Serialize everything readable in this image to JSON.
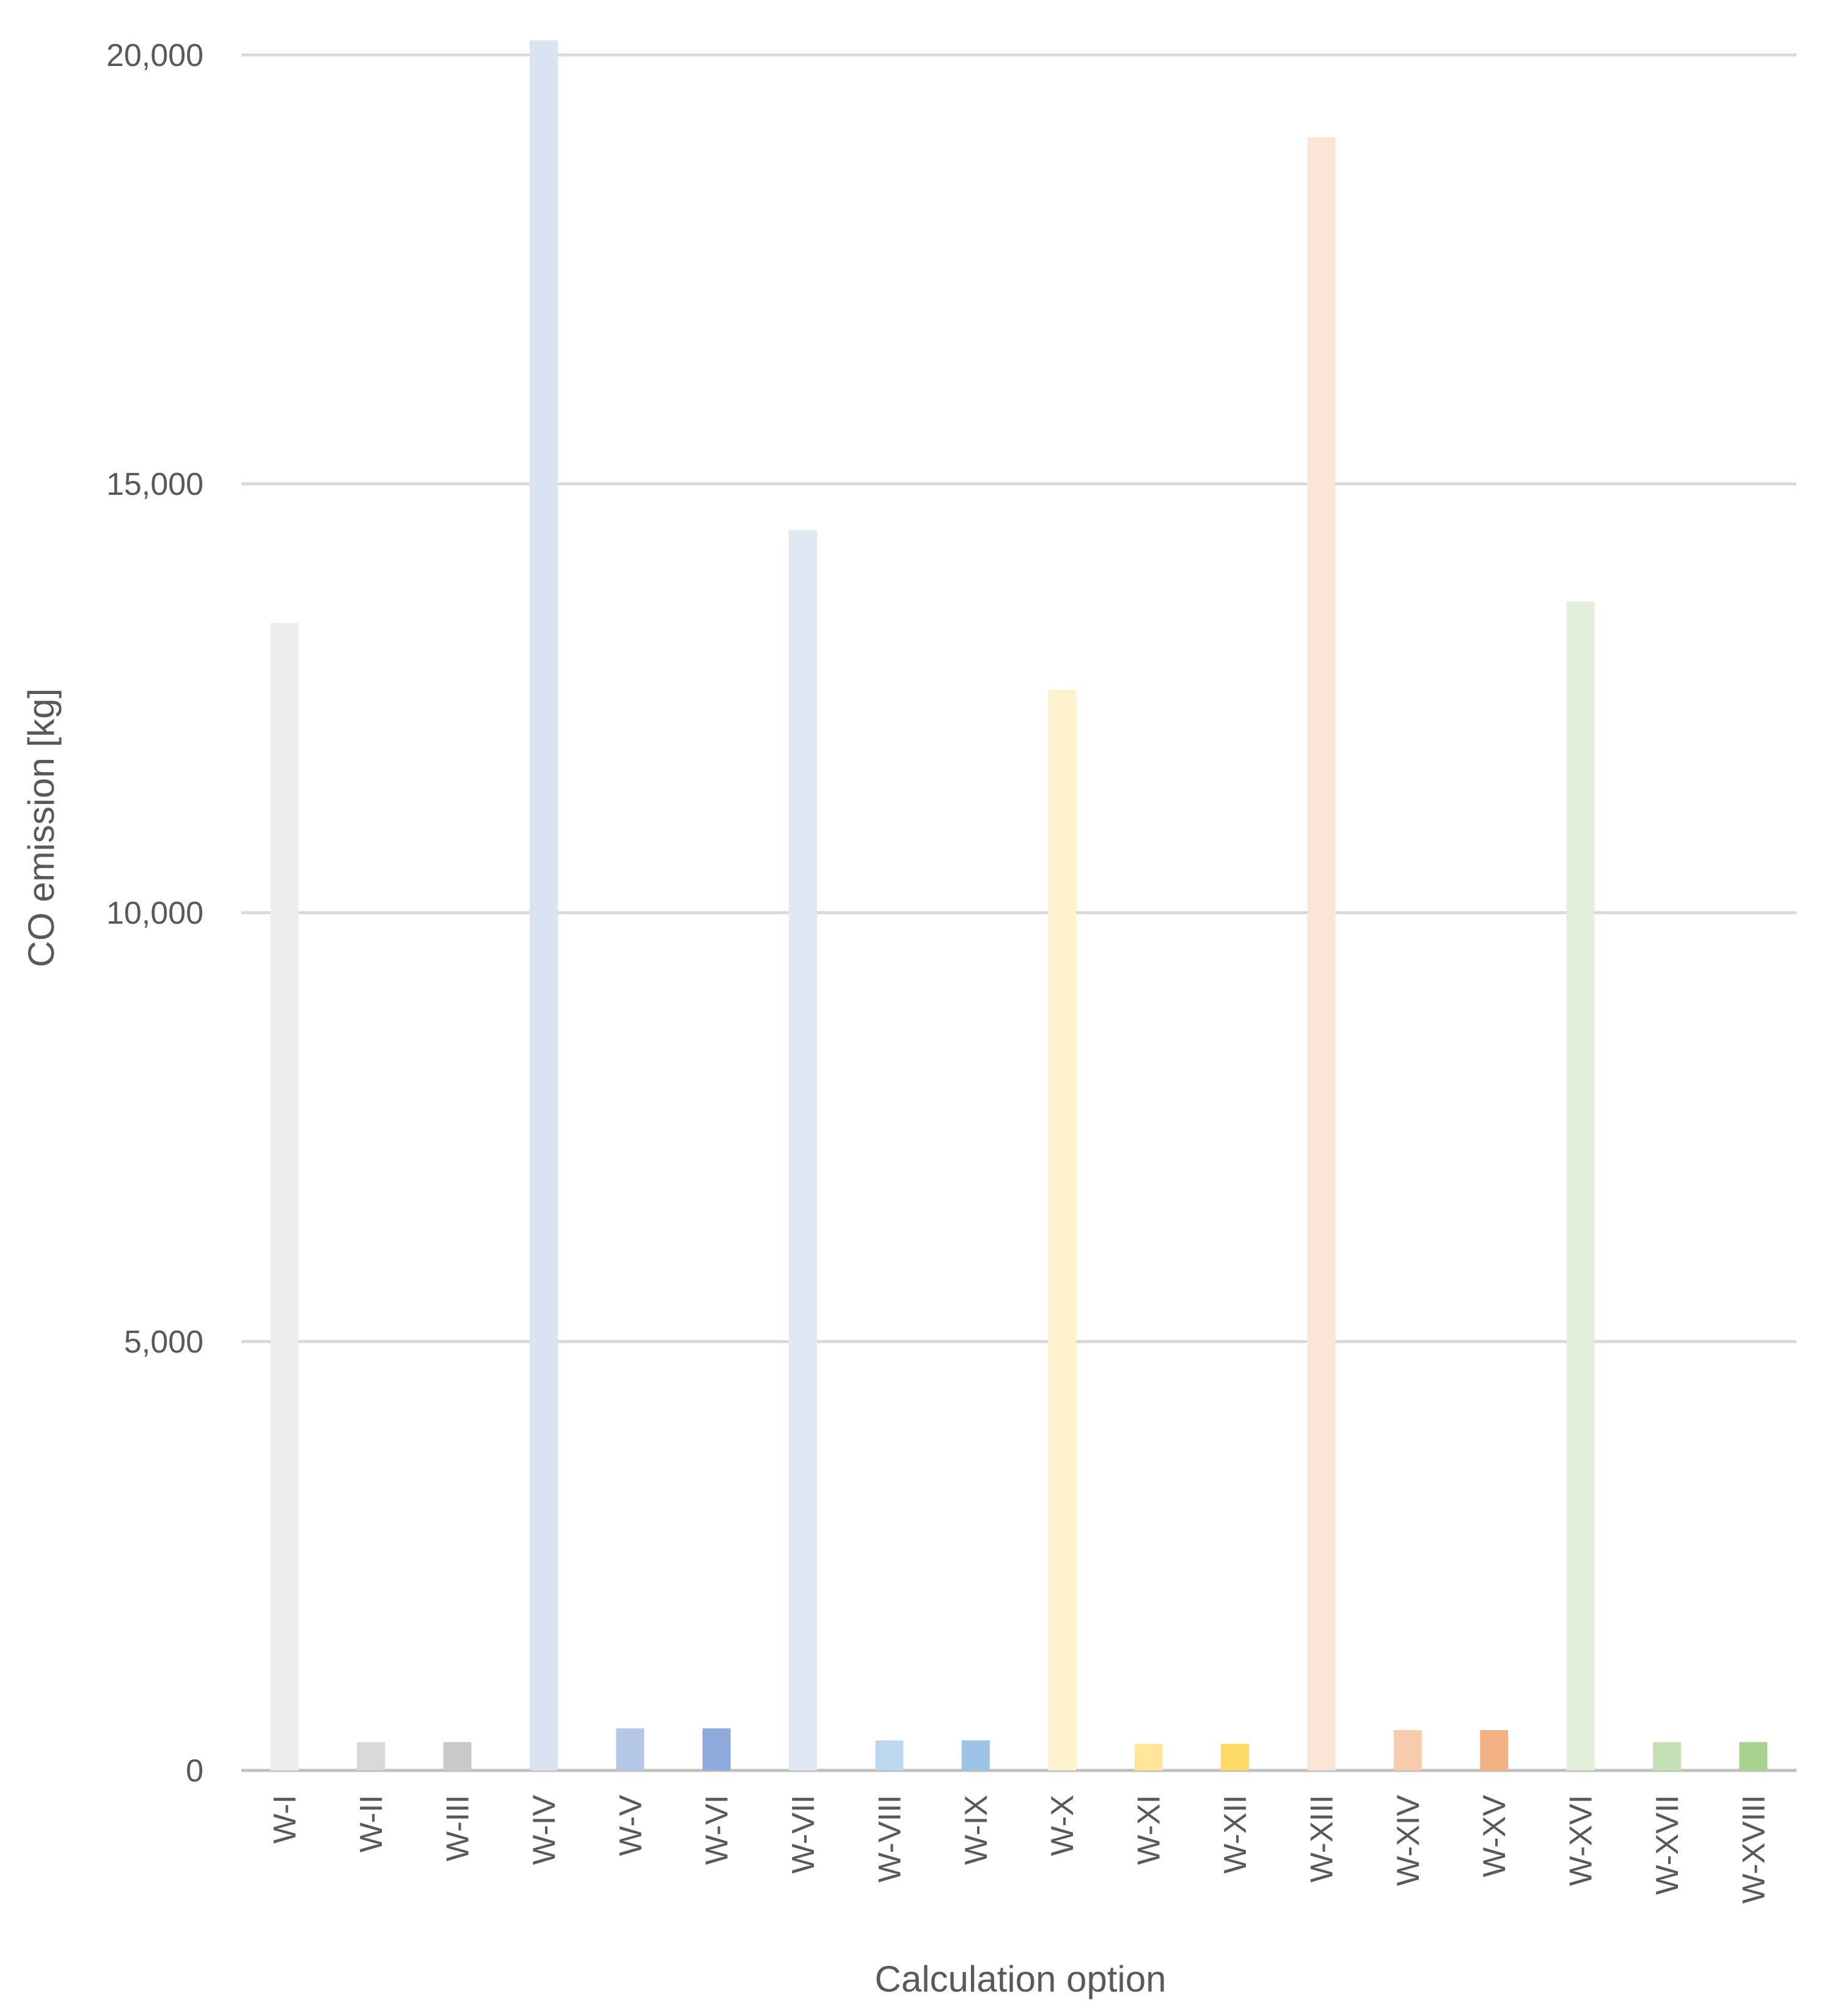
{
  "chart_data": {
    "type": "bar",
    "xlabel": "Calculation option",
    "ylabel": "CO emission [kg]",
    "ylim": [
      0,
      20000
    ],
    "yticks": [
      0,
      5000,
      10000,
      15000,
      20000
    ],
    "ytick_labels": [
      "0",
      "5,000",
      "10,000",
      "15,000",
      "20,000"
    ],
    "grid": true,
    "legend": "none",
    "categories": [
      "W-I",
      "W-II",
      "W-III",
      "W-IV",
      "W-V",
      "W-VI",
      "W-VII",
      "W-VIII",
      "W-IX",
      "W-X",
      "W-XI",
      "W-XII",
      "W-XIII",
      "W-XIV",
      "W-XV",
      "W-XVI",
      "W-XVII",
      "W-XVIII"
    ],
    "values": [
      13380,
      330,
      330,
      20170,
      490,
      490,
      14460,
      350,
      350,
      12600,
      310,
      310,
      19040,
      470,
      470,
      13630,
      330,
      330
    ],
    "colors": [
      "#ededed",
      "#d9d9d9",
      "#c9c9c9",
      "#dae3f3",
      "#b4c7e7",
      "#8faadc",
      "#dfe8f3",
      "#bdd7ee",
      "#9dc3e6",
      "#fff2cc",
      "#ffe699",
      "#ffd966",
      "#fbe5d6",
      "#f8cbad",
      "#f4b183",
      "#e2f0d9",
      "#c5e0b4",
      "#a9d18e"
    ],
    "gridline_color": "#d9d9d9",
    "axis_color": "#bfbfbf"
  }
}
